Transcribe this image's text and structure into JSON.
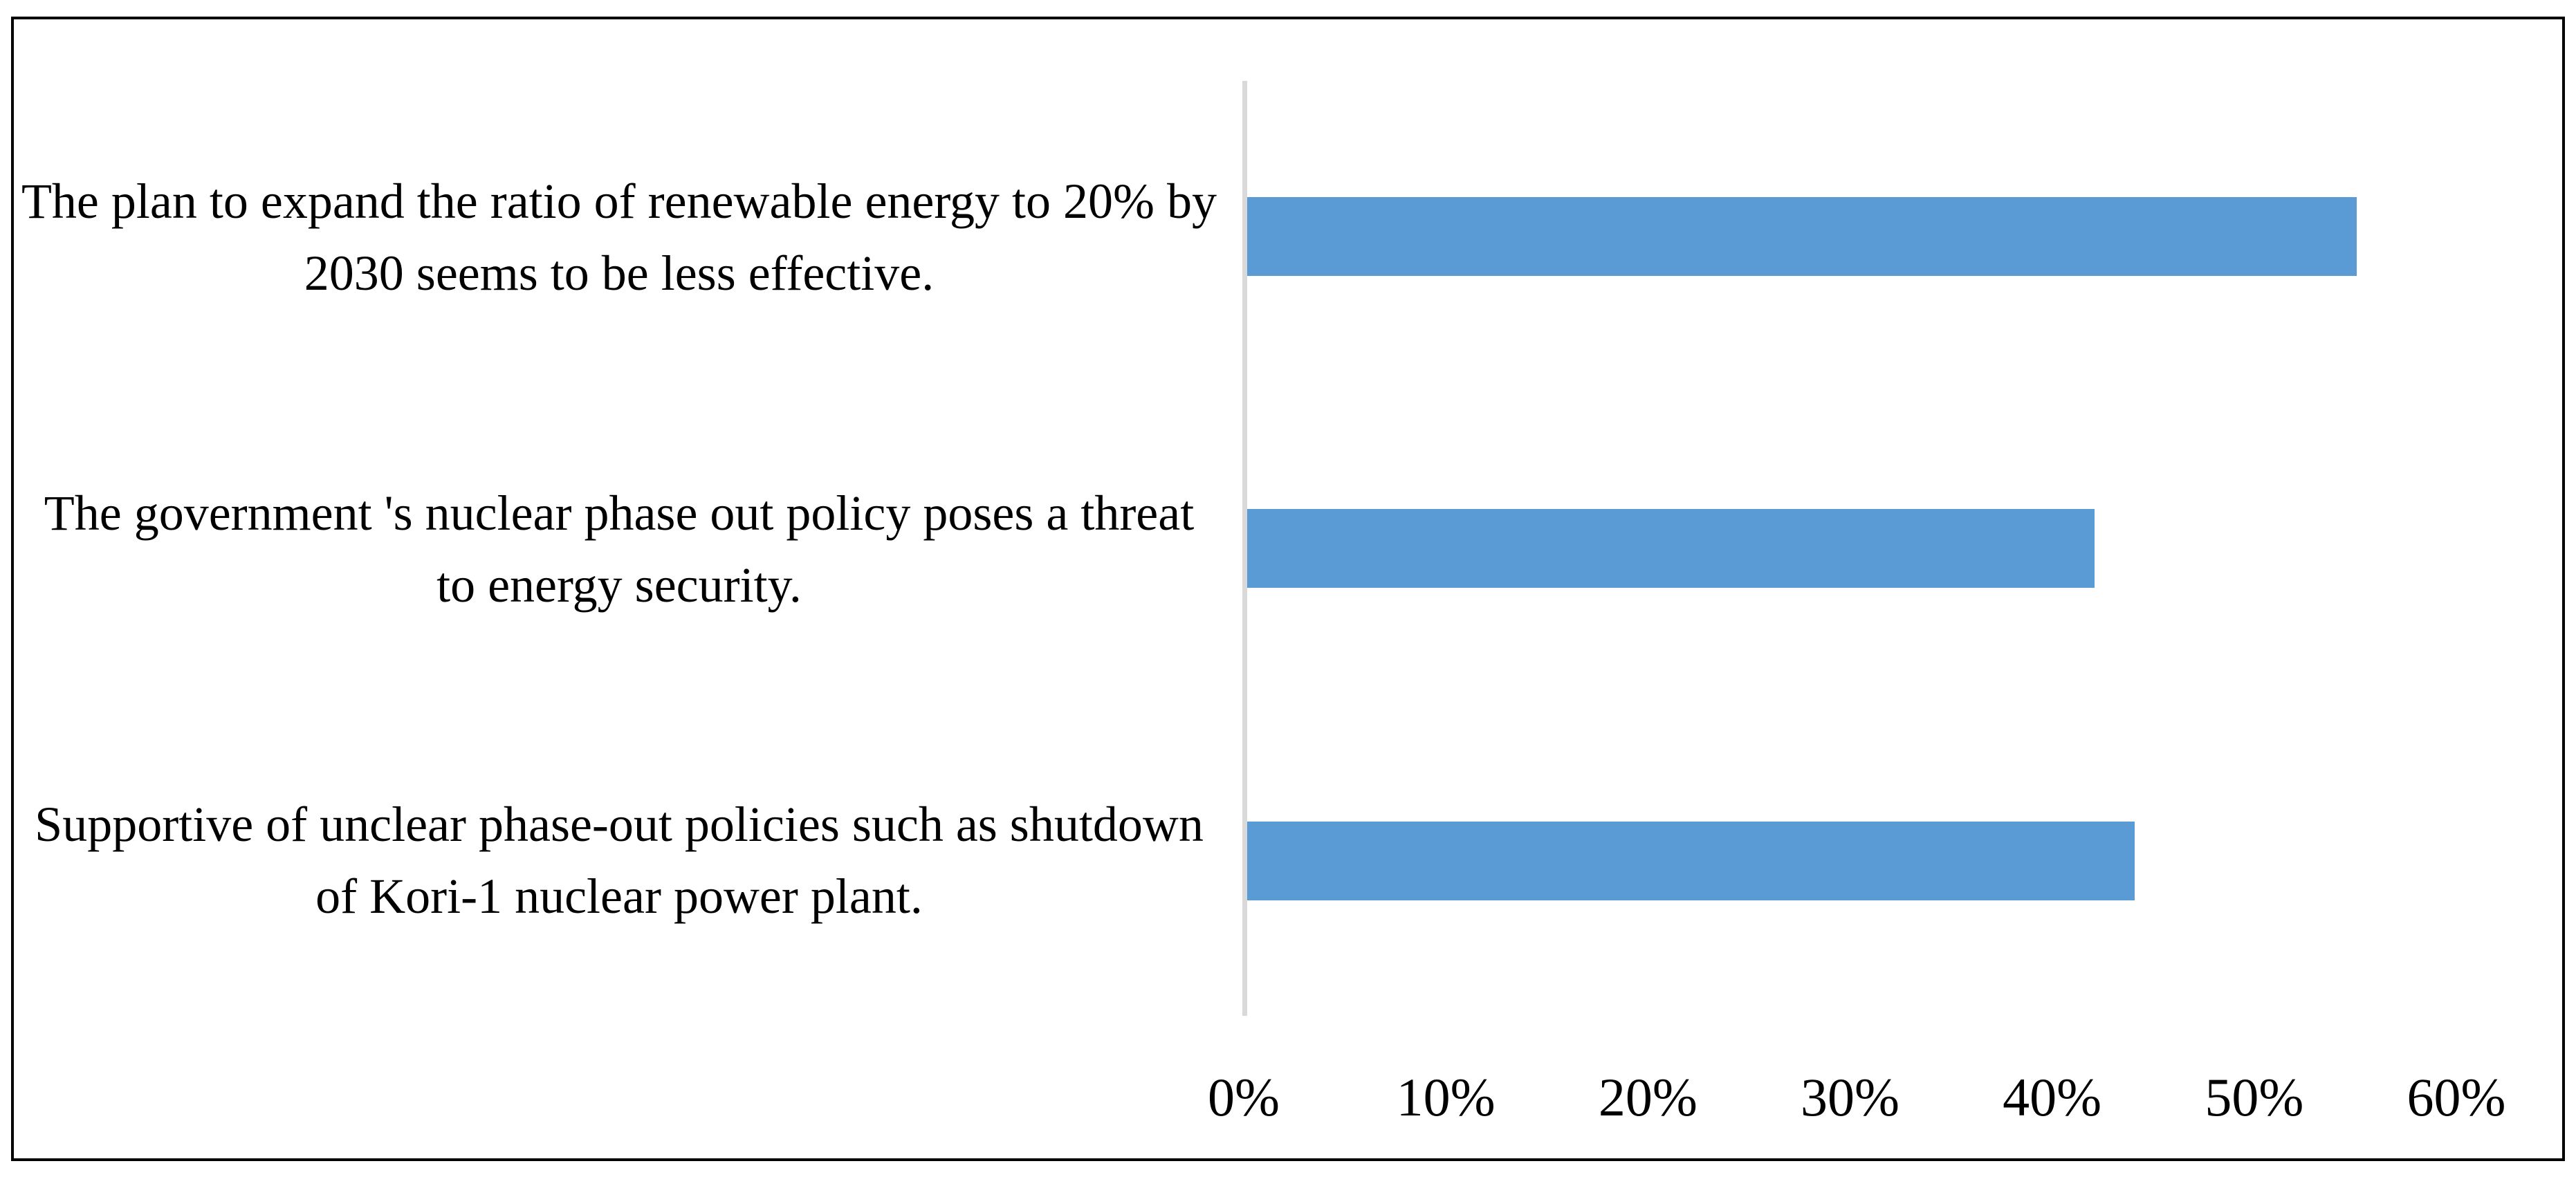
{
  "figure": {
    "background_color": "#ffffff",
    "border_color": "#000000"
  },
  "chart_data": {
    "type": "bar",
    "orientation": "horizontal",
    "title": "",
    "xlabel": "",
    "ylabel": "",
    "categories": [
      "The plan to expand the ratio of renewable energy to 20% by 2030 seems to be less effective.",
      "The government 's nuclear phase out policy poses a threat to energy security.",
      "Supportive of unclear phase-out policies such as shutdown of Kori-1 nuclear power plant."
    ],
    "values": [
      55,
      42,
      44
    ],
    "value_unit": "%",
    "xlim": [
      0,
      60
    ],
    "x_ticks": [
      "0%",
      "10%",
      "20%",
      "30%",
      "40%",
      "50%",
      "60%"
    ],
    "bar_color": "#5B9BD5",
    "axis_line_color": "#D9D9D9",
    "text_color": "#000000",
    "grid": false,
    "legend": false
  }
}
